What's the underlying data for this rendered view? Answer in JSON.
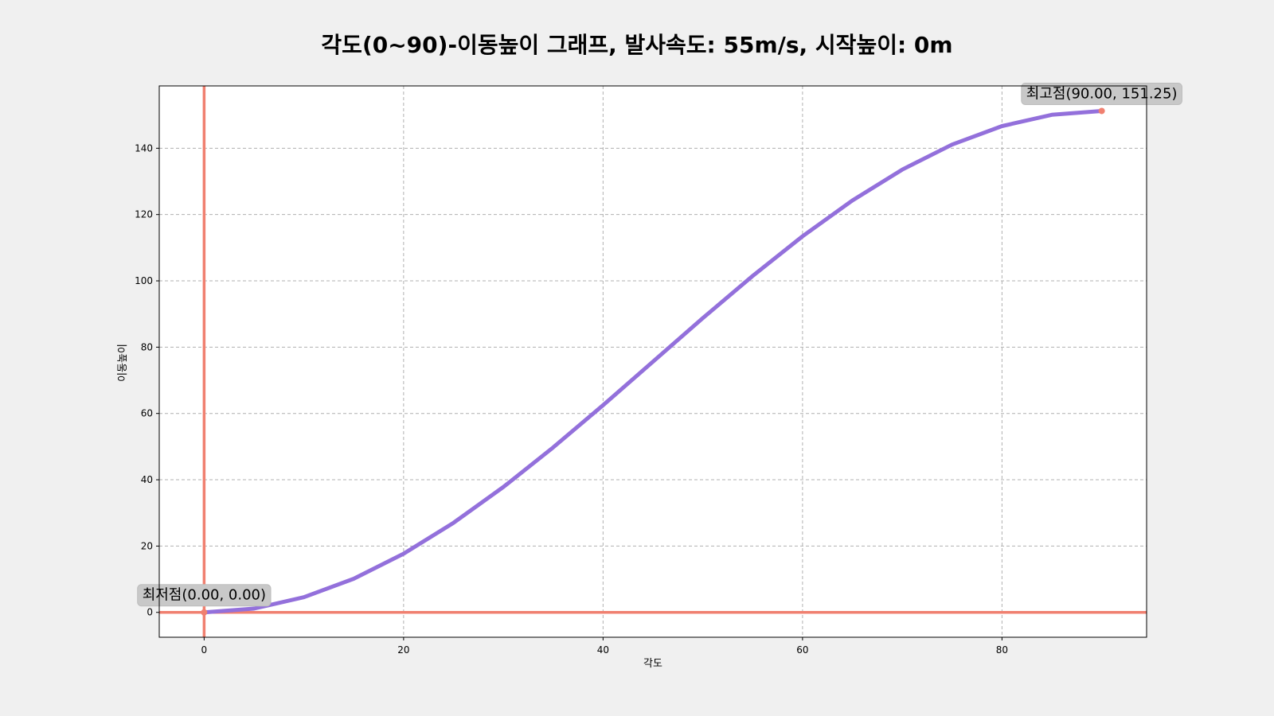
{
  "chart_data": {
    "type": "line",
    "title": "각도(0~90)-이동높이 그래프, 발사속도: 55m/s, 시작높이: 0m",
    "xlabel": "각도",
    "ylabel": "이동높이",
    "xlim": [
      -4.5,
      94.5
    ],
    "ylim": [
      -7.5,
      158.8
    ],
    "x_ticks": [
      0,
      20,
      40,
      60,
      80
    ],
    "y_ticks": [
      0,
      20,
      40,
      60,
      80,
      100,
      120,
      140
    ],
    "grid": true,
    "series": [
      {
        "color": "#9370db",
        "x": [
          0,
          5,
          10,
          15,
          20,
          25,
          30,
          35,
          40,
          45,
          50,
          55,
          60,
          65,
          70,
          75,
          80,
          85,
          90
        ],
        "y": [
          0,
          1.15,
          4.56,
          10.13,
          17.69,
          27.01,
          37.81,
          49.76,
          62.49,
          75.63,
          88.76,
          101.49,
          113.44,
          124.24,
          133.56,
          141.12,
          146.69,
          150.1,
          151.25
        ]
      }
    ],
    "reference_lines": {
      "color": "#f08070",
      "vertical_x": 0,
      "horizontal_y": 0
    },
    "annotations": [
      {
        "text": "최고점(90.00, 151.25)",
        "x": 90.0,
        "y": 151.25
      },
      {
        "text": "최저점(0.00, 0.00)",
        "x": 0.0,
        "y": 0.0
      }
    ]
  }
}
